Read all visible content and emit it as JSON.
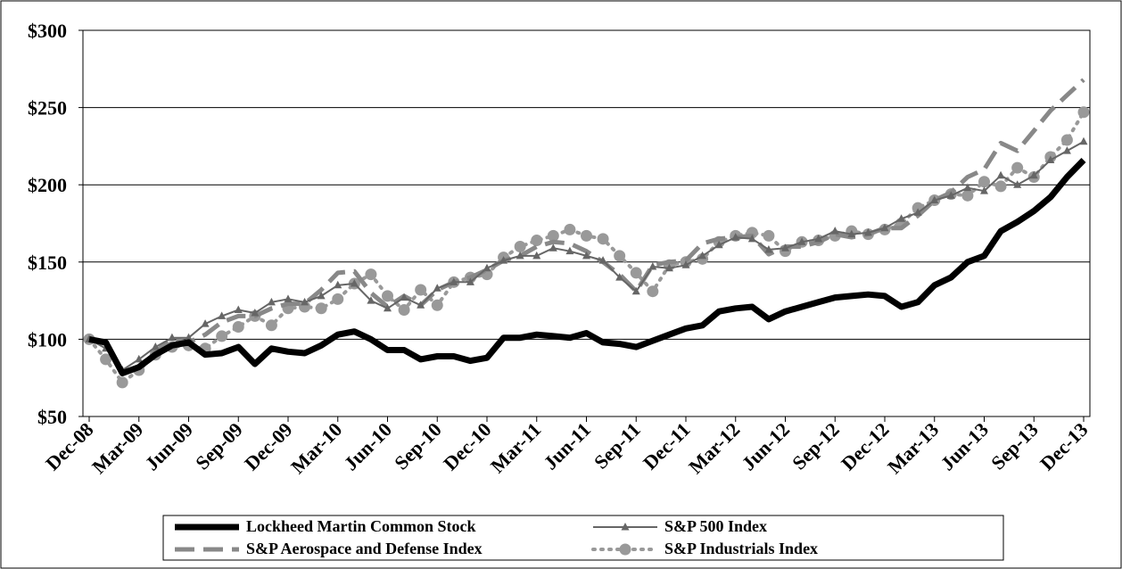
{
  "chart_data": {
    "type": "line",
    "categories": [
      "Dec-08",
      null,
      null,
      "Mar-09",
      null,
      null,
      "Jun-09",
      null,
      null,
      "Sep-09",
      null,
      null,
      "Dec-09",
      null,
      null,
      "Mar-10",
      null,
      null,
      "Jun-10",
      null,
      null,
      "Sep-10",
      null,
      null,
      "Dec-10",
      null,
      null,
      "Mar-11",
      null,
      null,
      "Jun-11",
      null,
      null,
      "Sep-11",
      null,
      null,
      "Dec-11",
      null,
      null,
      "Mar-12",
      null,
      null,
      "Jun-12",
      null,
      null,
      "Sep-12",
      null,
      null,
      "Dec-12",
      null,
      null,
      "Mar-13",
      null,
      null,
      "Jun-13",
      null,
      null,
      "Sep-13",
      null,
      null,
      "Dec-13"
    ],
    "ylim": [
      50,
      300
    ],
    "yticks": [
      {
        "value": 50,
        "label": "$50"
      },
      {
        "value": 100,
        "label": "$100"
      },
      {
        "value": 150,
        "label": "$150"
      },
      {
        "value": 200,
        "label": "$200"
      },
      {
        "value": 250,
        "label": "$250"
      },
      {
        "value": 300,
        "label": "$300"
      }
    ],
    "grid": true,
    "legend": "bottom",
    "series": [
      {
        "name": "Lockheed Martin Common Stock",
        "color": "#000000",
        "line_style": "solid",
        "line_width": "thick",
        "values": [
          100,
          98,
          78,
          82,
          90,
          96,
          98,
          90,
          91,
          95,
          84,
          94,
          92,
          91,
          96,
          103,
          105,
          100,
          93,
          93,
          87,
          89,
          89,
          86,
          88,
          101,
          101,
          103,
          102,
          101,
          104,
          98,
          97,
          95,
          99,
          103,
          107,
          109,
          118,
          120,
          121,
          113,
          118,
          121,
          124,
          127,
          128,
          129,
          128,
          121,
          124,
          135,
          140,
          150,
          154,
          170,
          176,
          183,
          192,
          205,
          216
        ]
      },
      {
        "name": "S&P 500 Index",
        "color": "#666666",
        "line_style": "solid",
        "line_width": "thin",
        "marker": "triangle",
        "values": [
          100,
          94,
          80,
          87,
          95,
          101,
          101,
          110,
          115,
          119,
          117,
          124,
          126,
          124,
          128,
          135,
          136,
          125,
          120,
          127,
          122,
          133,
          137,
          137,
          146,
          151,
          154,
          154,
          159,
          157,
          154,
          151,
          140,
          131,
          147,
          146,
          148,
          154,
          161,
          166,
          165,
          158,
          159,
          163,
          165,
          170,
          168,
          169,
          172,
          178,
          182,
          190,
          193,
          198,
          196,
          206,
          200,
          206,
          216,
          222,
          228
        ]
      },
      {
        "name": "S&P Aerospace and Defense Index",
        "color": "#888888",
        "line_style": "dashed",
        "line_width": "thick",
        "values": [
          100,
          97,
          79,
          82,
          92,
          100,
          98,
          103,
          111,
          115,
          115,
          120,
          123,
          123,
          132,
          143,
          144,
          130,
          121,
          128,
          122,
          132,
          137,
          140,
          145,
          151,
          154,
          160,
          163,
          162,
          157,
          150,
          142,
          131,
          148,
          150,
          151,
          162,
          165,
          166,
          167,
          155,
          160,
          160,
          163,
          168,
          166,
          168,
          172,
          172,
          180,
          190,
          195,
          205,
          210,
          227,
          222,
          235,
          248,
          258,
          268
        ]
      },
      {
        "name": "S&P Industrials Index",
        "color": "#999999",
        "line_style": "dotted",
        "line_width": "thick",
        "marker": "circle",
        "values": [
          100,
          87,
          72,
          80,
          90,
          95,
          96,
          94,
          102,
          108,
          115,
          109,
          120,
          121,
          120,
          126,
          136,
          142,
          128,
          119,
          132,
          122,
          137,
          140,
          142,
          153,
          160,
          164,
          167,
          171,
          167,
          165,
          154,
          143,
          131,
          148,
          150,
          152,
          163,
          167,
          169,
          167,
          157,
          163,
          164,
          167,
          170,
          168,
          171,
          175,
          185,
          190,
          194,
          193,
          202,
          199,
          211,
          205,
          218,
          229,
          247
        ]
      }
    ]
  }
}
